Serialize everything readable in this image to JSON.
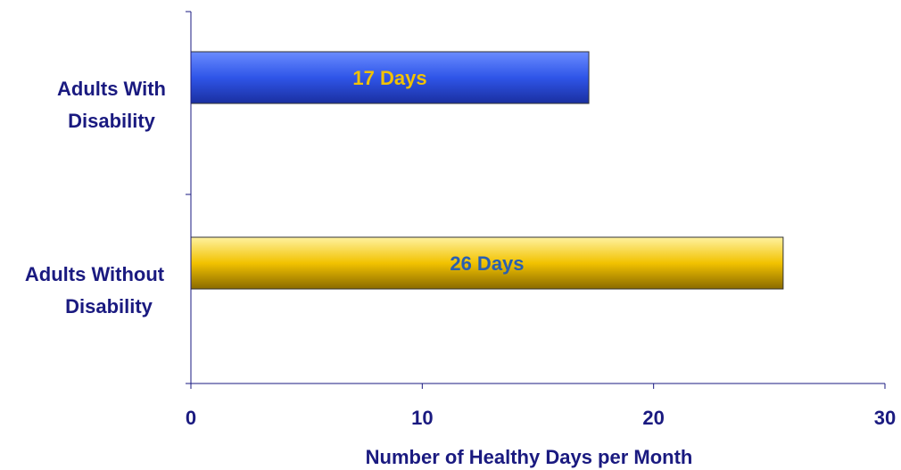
{
  "chart_data": {
    "type": "bar",
    "orientation": "horizontal",
    "categories": [
      {
        "line1": "Adults With",
        "line2": "Disability"
      },
      {
        "line1": "Adults Without",
        "line2": "Disability"
      }
    ],
    "values": [
      17.2,
      25.6
    ],
    "data_labels": [
      "17 Days",
      "26 Days"
    ],
    "xlabel": "Number of Healthy Days per Month",
    "xticks": [
      "0",
      "10",
      "20",
      "30"
    ],
    "xlim": [
      0,
      30
    ],
    "grid": false,
    "legend": "none",
    "colors": {
      "bar_with": "#2f55e8",
      "bar_without": "#f2c200",
      "label_with": "#f2c200",
      "label_without": "#2a5fb0",
      "axis": "#1a1a80",
      "text": "#1a1a80"
    }
  }
}
